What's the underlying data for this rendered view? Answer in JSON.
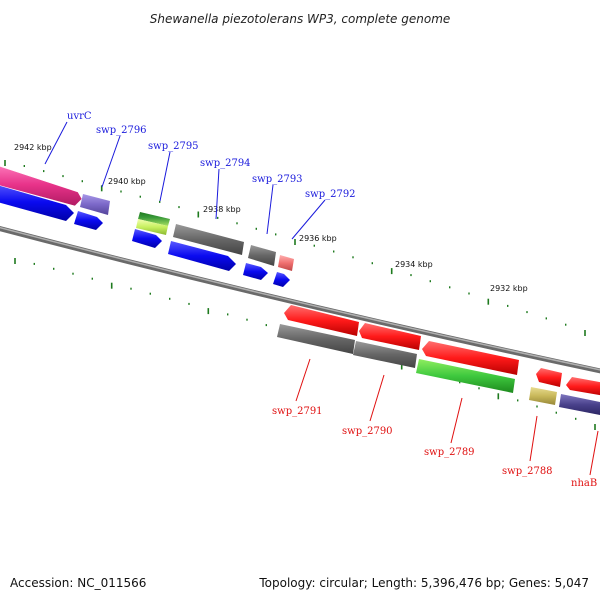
{
  "title": "Shewanella piezotolerans WP3, complete genome",
  "footer": {
    "accession": "Accession: NC_011566",
    "summary": "Topology: circular; Length: 5,396,476 bp; Genes: 5,047"
  },
  "colors": {
    "backbone": "#888888",
    "tick": "#1e7a1e",
    "label_top": "#1a1adc",
    "label_bottom": "#e01010"
  },
  "kbp_labels": [
    {
      "id": "2942",
      "text": "2942 kbp"
    },
    {
      "id": "2940",
      "text": "2940 kbp"
    },
    {
      "id": "2938",
      "text": "2938 kbp"
    },
    {
      "id": "2936",
      "text": "2936 kbp"
    },
    {
      "id": "2934",
      "text": "2934 kbp"
    },
    {
      "id": "2932",
      "text": "2932 kbp"
    }
  ],
  "genes_top": [
    {
      "id": "uvrC",
      "label": "uvrC",
      "color": "#e8338a"
    },
    {
      "id": "swp_2796",
      "label": "swp_2796",
      "color": "#7b68c8"
    },
    {
      "id": "swp_2795",
      "label": "swp_2795",
      "color": "#3a9a3a"
    },
    {
      "id": "swp_2794",
      "label": "swp_2794",
      "color": "#666666"
    },
    {
      "id": "swp_2793",
      "label": "swp_2793",
      "color": "#666666"
    },
    {
      "id": "swp_2792",
      "label": "swp_2792",
      "color": "#f07070"
    }
  ],
  "genes_bottom": [
    {
      "id": "swp_2791",
      "label": "swp_2791",
      "color": "#ff1a1a"
    },
    {
      "id": "swp_2790",
      "label": "swp_2790",
      "color": "#ff1a1a"
    },
    {
      "id": "swp_2789",
      "label": "swp_2789",
      "color": "#ff1a1a"
    },
    {
      "id": "swp_2788",
      "label": "swp_2788",
      "color": "#c8b85a"
    },
    {
      "id": "nhaB",
      "label": "nhaB",
      "color": "#ff1a1a"
    }
  ]
}
